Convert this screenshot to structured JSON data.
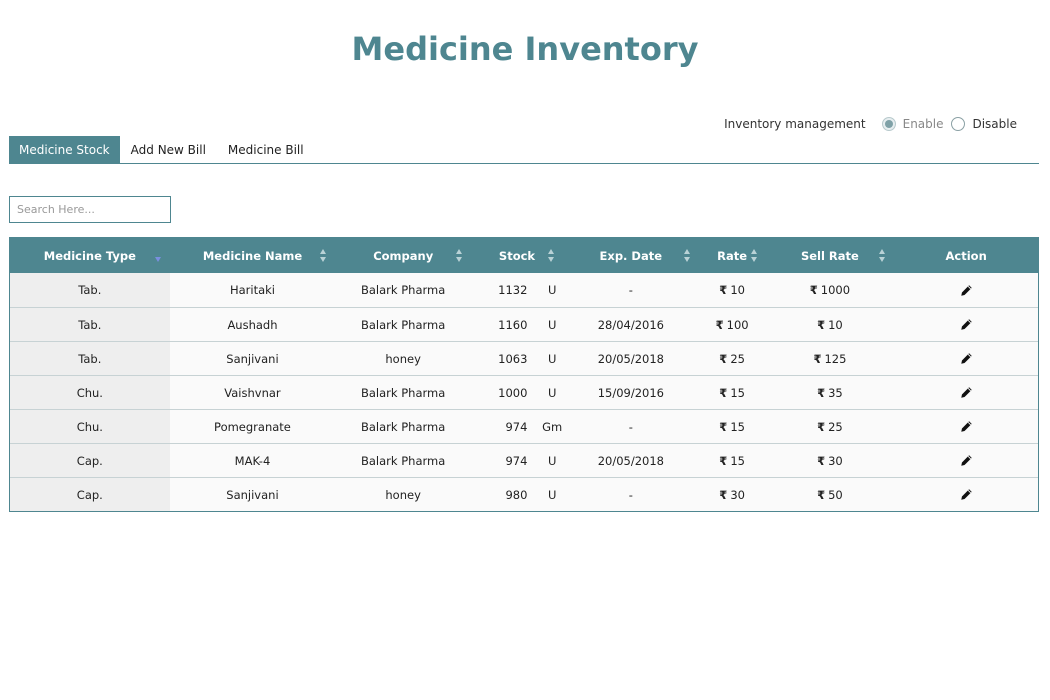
{
  "title": "Medicine Inventory",
  "inventory_management": {
    "label": "Inventory management",
    "options": [
      {
        "label": "Enable",
        "selected": true
      },
      {
        "label": "Disable",
        "selected": false
      }
    ]
  },
  "tabs": [
    {
      "label": "Medicine Stock",
      "active": true
    },
    {
      "label": "Add New Bill",
      "active": false
    },
    {
      "label": "Medicine Bill",
      "active": false
    }
  ],
  "search": {
    "placeholder": "Search Here...",
    "value": ""
  },
  "table": {
    "currency_symbol": "₹",
    "columns": [
      "Medicine Type",
      "Medicine Name",
      "Company",
      "Stock",
      "Exp. Date",
      "Rate",
      "Sell Rate",
      "Action"
    ],
    "rows": [
      {
        "type": "Tab.",
        "name": "Haritaki",
        "company": "Balark Pharma",
        "stock": "1132",
        "unit": "U",
        "exp": "-",
        "rate": "10",
        "sell_rate": "1000"
      },
      {
        "type": "Tab.",
        "name": "Aushadh",
        "company": "Balark Pharma",
        "stock": "1160",
        "unit": "U",
        "exp": "28/04/2016",
        "rate": "100",
        "sell_rate": "10"
      },
      {
        "type": "Tab.",
        "name": "Sanjivani",
        "company": "honey",
        "stock": "1063",
        "unit": "U",
        "exp": "20/05/2018",
        "rate": "25",
        "sell_rate": "125"
      },
      {
        "type": "Chu.",
        "name": "Vaishvnar",
        "company": "Balark Pharma",
        "stock": "1000",
        "unit": "U",
        "exp": "15/09/2016",
        "rate": "15",
        "sell_rate": "35"
      },
      {
        "type": "Chu.",
        "name": "Pomegranate",
        "company": "Balark Pharma",
        "stock": "974",
        "unit": "Gm",
        "exp": "-",
        "rate": "15",
        "sell_rate": "25"
      },
      {
        "type": "Cap.",
        "name": "MAK-4",
        "company": "Balark Pharma",
        "stock": "974",
        "unit": "U",
        "exp": "20/05/2018",
        "rate": "15",
        "sell_rate": "30"
      },
      {
        "type": "Cap.",
        "name": "Sanjivani",
        "company": "honey",
        "stock": "980",
        "unit": "U",
        "exp": "-",
        "rate": "30",
        "sell_rate": "50"
      }
    ],
    "action_icon": "pencil-edit-icon"
  },
  "colors": {
    "accent": "#4e8690",
    "row_bg": "#fafafa",
    "type_col_bg": "#eeeeee"
  }
}
